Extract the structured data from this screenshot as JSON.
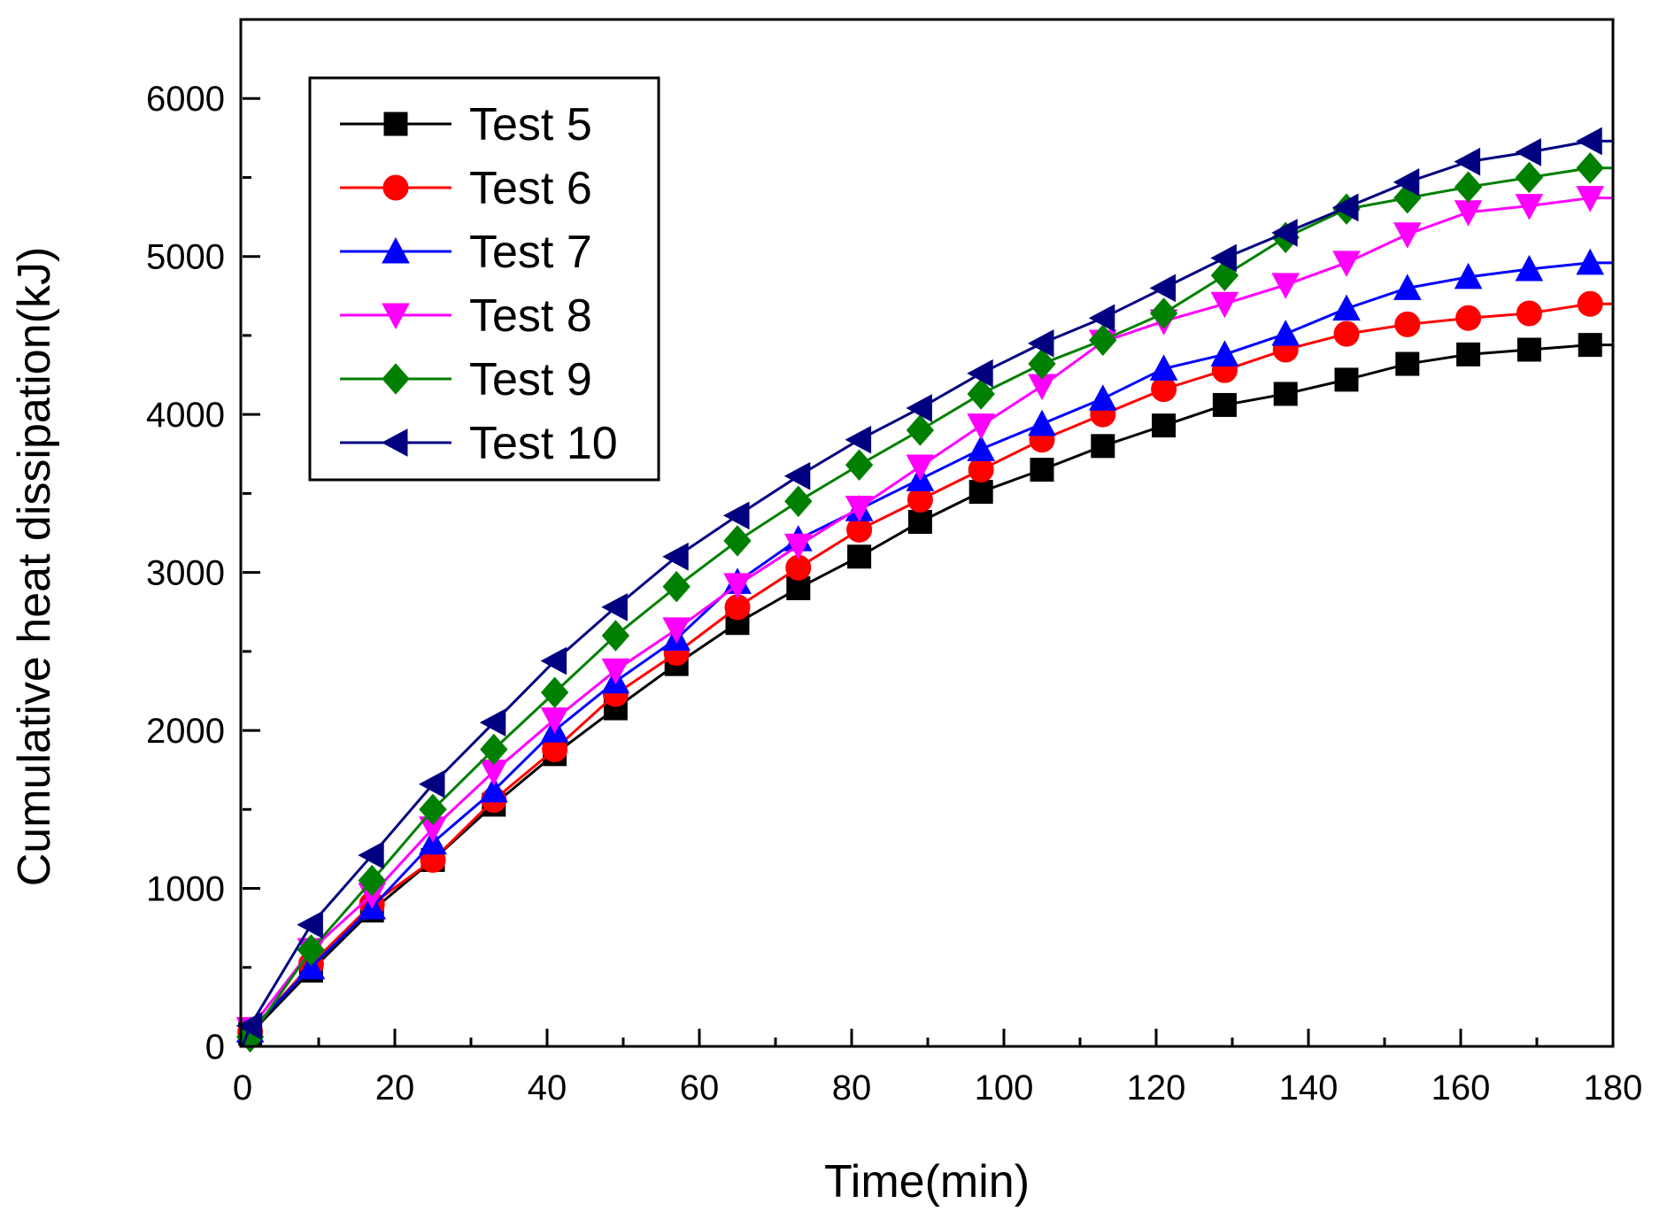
{
  "chart_data": {
    "type": "line",
    "title": "",
    "xlabel": "Time(min)",
    "ylabel": "Cumulative heat dissipation(kJ)",
    "xlim": [
      0,
      180
    ],
    "ylim": [
      0,
      6500
    ],
    "xticks": [
      0,
      20,
      40,
      60,
      80,
      100,
      120,
      140,
      160,
      180
    ],
    "yticks": [
      0,
      1000,
      2000,
      3000,
      4000,
      5000,
      6000
    ],
    "legend_position": "top-left",
    "x": [
      1,
      9,
      17,
      25,
      33,
      41,
      49,
      57,
      65,
      73,
      81,
      89,
      97,
      105,
      113,
      121,
      129,
      137,
      145,
      153,
      161,
      169,
      177
    ],
    "x_end": 180,
    "series": [
      {
        "name": "Test 5",
        "color": "#000000",
        "marker": "square",
        "values": [
          80,
          480,
          860,
          1180,
          1530,
          1850,
          2140,
          2420,
          2680,
          2900,
          3100,
          3320,
          3510,
          3650,
          3800,
          3930,
          4060,
          4130,
          4220,
          4320,
          4380,
          4410,
          4440
        ]
      },
      {
        "name": "Test 6",
        "color": "#ff0000",
        "marker": "circle",
        "values": [
          90,
          520,
          900,
          1180,
          1560,
          1880,
          2230,
          2490,
          2780,
          3030,
          3270,
          3460,
          3650,
          3840,
          4000,
          4160,
          4280,
          4410,
          4510,
          4570,
          4610,
          4640,
          4700
        ]
      },
      {
        "name": "Test 7",
        "color": "#0000ff",
        "marker": "triangle-up",
        "values": [
          100,
          500,
          880,
          1290,
          1620,
          2000,
          2310,
          2580,
          2940,
          3210,
          3400,
          3590,
          3780,
          3940,
          4100,
          4290,
          4380,
          4510,
          4670,
          4800,
          4870,
          4920,
          4960
        ]
      },
      {
        "name": "Test 8",
        "color": "#ff00ff",
        "marker": "triangle-down",
        "values": [
          110,
          610,
          960,
          1380,
          1740,
          2070,
          2380,
          2640,
          2920,
          3170,
          3410,
          3670,
          3930,
          4180,
          4460,
          4590,
          4700,
          4820,
          4960,
          5140,
          5280,
          5320,
          5370
        ]
      },
      {
        "name": "Test 9",
        "color": "#008000",
        "marker": "diamond",
        "values": [
          60,
          610,
          1050,
          1500,
          1880,
          2240,
          2600,
          2910,
          3200,
          3450,
          3680,
          3900,
          4130,
          4320,
          4470,
          4640,
          4880,
          5120,
          5300,
          5370,
          5440,
          5500,
          5560
        ]
      },
      {
        "name": "Test 10",
        "color": "#000080",
        "marker": "triangle-left",
        "values": [
          130,
          770,
          1210,
          1660,
          2050,
          2440,
          2780,
          3100,
          3360,
          3610,
          3840,
          4040,
          4260,
          4450,
          4610,
          4800,
          4990,
          5150,
          5310,
          5470,
          5600,
          5660,
          5730
        ]
      }
    ]
  }
}
